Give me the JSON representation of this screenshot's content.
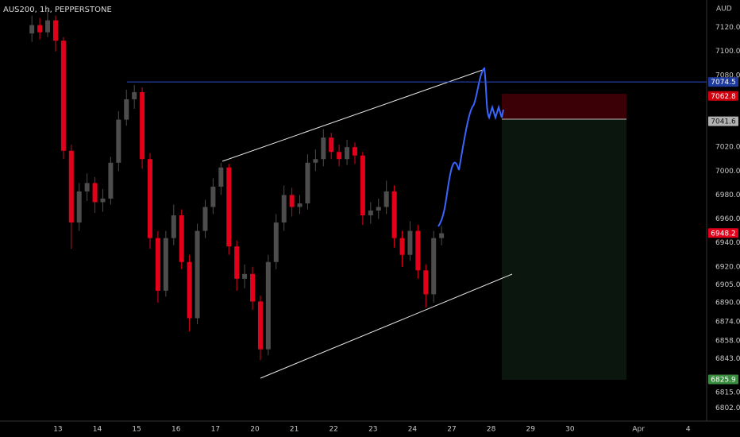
{
  "chart_data": {
    "type": "candlestick",
    "title": "AUS200, 1h, PEPPERSTONE",
    "y_axis_label": "AUD",
    "xlim": [
      -1.47,
      16.47
    ],
    "xticks": [
      {
        "value": 0,
        "label": "13"
      },
      {
        "value": 1,
        "label": "14"
      },
      {
        "value": 2,
        "label": "15"
      },
      {
        "value": 3,
        "label": "16"
      },
      {
        "value": 4,
        "label": "17"
      },
      {
        "value": 5,
        "label": "20"
      },
      {
        "value": 6,
        "label": "21"
      },
      {
        "value": 7,
        "label": "22"
      },
      {
        "value": 8,
        "label": "23"
      },
      {
        "value": 9,
        "label": "24"
      },
      {
        "value": 10,
        "label": "27"
      },
      {
        "value": 11,
        "label": "28"
      },
      {
        "value": 12,
        "label": "29"
      },
      {
        "value": 13,
        "label": "30"
      },
      {
        "value": 14.74,
        "label": "Apr"
      },
      {
        "value": 16,
        "label": "4"
      }
    ],
    "ylim": [
      6791,
      7143
    ],
    "yticks": [
      {
        "value": 7120,
        "label": "7120.0"
      },
      {
        "value": 7100,
        "label": "7100.0"
      },
      {
        "value": 7080,
        "label": "7080.0"
      },
      {
        "value": 7020,
        "label": "7020.0"
      },
      {
        "value": 7000,
        "label": "7000.0"
      },
      {
        "value": 6980,
        "label": "6980.0"
      },
      {
        "value": 6960,
        "label": "6960.0"
      },
      {
        "value": 6940,
        "label": "6940.0"
      },
      {
        "value": 6920,
        "label": "6920.0"
      },
      {
        "value": 6905,
        "label": "6905.0"
      },
      {
        "value": 6890,
        "label": "6890.0"
      },
      {
        "value": 6874,
        "label": "6874.0"
      },
      {
        "value": 6858,
        "label": "6858.0"
      },
      {
        "value": 6843,
        "label": "6843.0"
      },
      {
        "value": 6815,
        "label": "6815.0"
      },
      {
        "value": 6802,
        "label": "6802.0"
      }
    ],
    "grid": false,
    "up_color": "#4d4d4d",
    "down_color": "#e3001b",
    "x": [
      -0.66,
      -0.46,
      -0.26,
      -0.06,
      0.14,
      0.34,
      0.54,
      0.74,
      0.94,
      1.14,
      1.34,
      1.54,
      1.74,
      1.94,
      2.14,
      2.34,
      2.54,
      2.74,
      2.94,
      3.14,
      3.34,
      3.54,
      3.74,
      3.94,
      4.14,
      4.34,
      4.54,
      4.74,
      4.94,
      5.14,
      5.34,
      5.54,
      5.74,
      5.94,
      6.14,
      6.34,
      6.54,
      6.74,
      6.94,
      7.14,
      7.34,
      7.54,
      7.74,
      7.94,
      8.14,
      8.34,
      8.54,
      8.74,
      8.94,
      9.14,
      9.34,
      9.54,
      9.74
    ],
    "open": [
      7115,
      7122,
      7116,
      7126,
      7109,
      7017,
      6957,
      6983,
      6990,
      6974,
      6977,
      7007,
      7043,
      7060,
      7066,
      7010,
      6944,
      6900,
      6944,
      6963,
      6924,
      6877,
      6950,
      6970,
      6987,
      7003,
      6937,
      6910,
      6914,
      6891,
      6851,
      6924,
      6957,
      6980,
      6970,
      6973,
      7007,
      7010,
      7028,
      7016,
      7010,
      7020,
      7013,
      6963,
      6967,
      6970,
      6983,
      6944,
      6930,
      6950,
      6917,
      6897,
      6944
    ],
    "high": [
      7130,
      7128,
      7135,
      7130,
      7112,
      7022,
      6990,
      6998,
      6995,
      6985,
      7012,
      7050,
      7068,
      7072,
      7070,
      7015,
      6950,
      6950,
      6972,
      6968,
      6930,
      6956,
      6976,
      6994,
      7007,
      7006,
      6942,
      6922,
      6920,
      6896,
      6930,
      6964,
      6988,
      6986,
      6980,
      7014,
      7018,
      7035,
      7032,
      7022,
      7026,
      7024,
      7016,
      6974,
      6977,
      6992,
      6988,
      6950,
      6958,
      6955,
      6922,
      6950,
      6954
    ],
    "low": [
      7108,
      7110,
      7112,
      7100,
      7010,
      6935,
      6950,
      6975,
      6965,
      6966,
      6972,
      7000,
      7038,
      7052,
      7002,
      6935,
      6890,
      6895,
      6938,
      6918,
      6866,
      6872,
      6944,
      6964,
      6980,
      6930,
      6900,
      6902,
      6884,
      6842,
      6846,
      6918,
      6950,
      6962,
      6964,
      6968,
      7000,
      7004,
      7010,
      7004,
      7005,
      7006,
      6955,
      6956,
      6960,
      6964,
      6936,
      6920,
      6925,
      6910,
      6886,
      6890,
      6938
    ],
    "close": [
      7122,
      7116,
      7126,
      7109,
      7017,
      6957,
      6983,
      6990,
      6974,
      6977,
      7007,
      7043,
      7060,
      7066,
      7010,
      6944,
      6900,
      6944,
      6963,
      6924,
      6877,
      6950,
      6970,
      6987,
      7003,
      6937,
      6910,
      6914,
      6891,
      6851,
      6924,
      6957,
      6980,
      6970,
      6973,
      7007,
      7010,
      7028,
      7016,
      7010,
      7020,
      7013,
      6963,
      6967,
      6970,
      6983,
      6944,
      6930,
      6950,
      6917,
      6897,
      6944,
      6948
    ],
    "price_badges": [
      {
        "value": 7074.5,
        "color": "#1e3a9c",
        "text_color": "#ffffff"
      },
      {
        "value": 7062.8,
        "color": "#d0000f",
        "text_color": "#ffffff"
      },
      {
        "value": 7041.6,
        "color": "#b2b2b2",
        "text_color": "#111111"
      },
      {
        "value": 6948.2,
        "color": "#e3001b",
        "text_color": "#ffffff"
      },
      {
        "value": 6825.9,
        "color": "#3a8c3f",
        "text_color": "#ffffff"
      }
    ]
  }
}
